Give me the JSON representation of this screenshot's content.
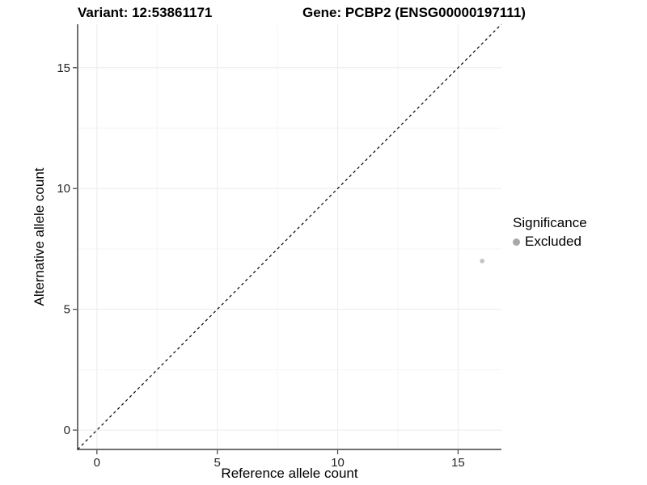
{
  "figure": {
    "title_left": "Variant: 12:53861171",
    "title_right": "Gene: PCBP2 (ENSG00000197111)"
  },
  "legend": {
    "title": "Significance",
    "items": [
      {
        "label": "Excluded",
        "swatch_color": "#a8a8a8",
        "shape": "circle"
      }
    ]
  },
  "chart_data": {
    "type": "scatter",
    "title": "Variant: 12:53861171   Gene: PCBP2 (ENSG00000197111)",
    "xlabel": "Reference allele count",
    "ylabel": "Alternative allele count",
    "xlim": [
      -0.8,
      16.8
    ],
    "ylim": [
      -0.8,
      16.8
    ],
    "x_ticks": [
      0,
      5,
      10,
      15
    ],
    "y_ticks": [
      0,
      5,
      10,
      15
    ],
    "x_minor_ticks": [
      2.5,
      7.5,
      12.5
    ],
    "y_minor_ticks": [
      2.5,
      7.5,
      12.5
    ],
    "grid": true,
    "legend_position": "right-center",
    "series": [
      {
        "name": "Excluded",
        "color": "#c2c2c2",
        "marker": "circle",
        "marker_radius": 2.8,
        "points": [
          {
            "x": 16,
            "y": 7
          }
        ]
      }
    ],
    "reference_line": {
      "kind": "identity",
      "slope": 1,
      "intercept": 0,
      "linestyle": "dashed",
      "color": "#000000"
    }
  },
  "style": {
    "background": "#ffffff",
    "grid_major_color": "#ebebeb",
    "grid_minor_color": "#f4f4f4",
    "axis_line_color": "#404040",
    "tick_color": "#404040",
    "tick_label_color": "#262626"
  }
}
